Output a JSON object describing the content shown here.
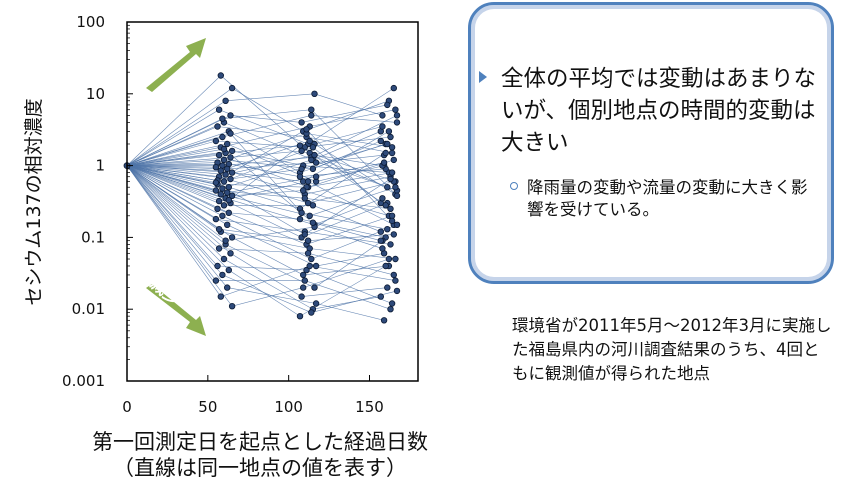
{
  "chart_data": {
    "type": "scatter",
    "x_ticks": [
      0,
      50,
      100,
      150
    ],
    "y_scale": "log",
    "y_ticks": [
      "100",
      "10",
      "1",
      "0.1",
      "0.01",
      "0.001"
    ],
    "ylim": [
      0.001,
      100
    ],
    "xlim": [
      0,
      180
    ],
    "ylabel": "セシウム137の相対濃度",
    "xlabel": "第一回測定日を起点とした経過日数",
    "xlabel_note": "（直線は同一地点の値を表す）",
    "annotations": [
      {
        "text": "増加",
        "direction": "up"
      },
      {
        "text": "減少",
        "direction": "down"
      }
    ],
    "series": [
      {
        "x": [
          0,
          58,
          108,
          160
        ],
        "y": [
          1,
          5,
          3,
          4
        ],
        "x2": [
          0,
          60,
          112,
          163
        ],
        "y2": [
          1,
          0.3,
          1.5,
          0.6
        ]
      }
    ],
    "sites": [
      [
        1,
        18,
        1.5,
        0.6
      ],
      [
        1,
        12,
        3,
        8
      ],
      [
        1,
        8,
        10,
        5
      ],
      [
        1,
        6,
        2,
        12
      ],
      [
        1,
        5,
        4,
        7
      ],
      [
        1,
        4,
        1.2,
        3
      ],
      [
        1,
        3.5,
        2.5,
        1.5
      ],
      [
        1,
        3,
        0.8,
        2
      ],
      [
        1,
        2.5,
        5,
        4
      ],
      [
        1,
        2.2,
        1.8,
        2.5
      ],
      [
        1,
        2,
        0.6,
        1
      ],
      [
        1,
        1.8,
        3.5,
        6
      ],
      [
        1,
        1.6,
        1,
        0.8
      ],
      [
        1,
        1.5,
        2,
        3.5
      ],
      [
        1,
        1.4,
        0.5,
        1.2
      ],
      [
        1,
        1.3,
        1.6,
        0.5
      ],
      [
        1,
        1.2,
        0.9,
        2.2
      ],
      [
        1,
        1.1,
        2.8,
        1.8
      ],
      [
        1,
        1.05,
        0.7,
        0.9
      ],
      [
        1,
        1,
        1.3,
        5
      ],
      [
        1,
        0.95,
        0.4,
        0.7
      ],
      [
        1,
        0.9,
        1.1,
        1.4
      ],
      [
        1,
        0.85,
        2.2,
        0.4
      ],
      [
        1,
        0.8,
        0.6,
        3
      ],
      [
        1,
        0.75,
        1.4,
        1
      ],
      [
        1,
        0.7,
        0.3,
        0.6
      ],
      [
        1,
        0.65,
        0.9,
        2
      ],
      [
        1,
        0.6,
        1.8,
        0.3
      ],
      [
        1,
        0.55,
        0.5,
        0.8
      ],
      [
        1,
        0.5,
        0.25,
        1.5
      ],
      [
        1,
        0.48,
        1.2,
        0.45
      ],
      [
        1,
        0.45,
        0.35,
        0.25
      ],
      [
        1,
        0.42,
        0.7,
        1.1
      ],
      [
        1,
        0.4,
        0.2,
        0.5
      ],
      [
        1,
        0.38,
        0.45,
        0.2
      ],
      [
        1,
        0.35,
        0.15,
        0.35
      ],
      [
        1,
        0.32,
        0.6,
        0.15
      ],
      [
        1,
        0.3,
        0.1,
        0.3
      ],
      [
        1,
        0.28,
        0.28,
        0.12
      ],
      [
        1,
        0.25,
        0.08,
        0.2
      ],
      [
        1,
        0.22,
        0.18,
        0.1
      ],
      [
        1,
        0.2,
        0.05,
        0.15
      ],
      [
        1,
        0.18,
        0.12,
        0.08
      ],
      [
        1,
        0.15,
        0.04,
        0.06
      ],
      [
        1,
        0.12,
        0.07,
        0.05
      ],
      [
        1,
        0.1,
        0.03,
        0.04
      ],
      [
        1,
        0.08,
        0.02,
        0.09
      ],
      [
        1,
        0.07,
        0.06,
        0.03
      ],
      [
        1,
        0.06,
        0.015,
        0.02
      ],
      [
        1,
        0.05,
        0.01,
        0.015
      ],
      [
        1,
        0.04,
        0.035,
        0.012
      ],
      [
        1,
        0.035,
        0.008,
        0.04
      ],
      [
        1,
        0.03,
        0.009,
        0.018
      ],
      [
        1,
        0.025,
        0.025,
        0.01
      ],
      [
        1,
        0.02,
        0.012,
        0.007
      ],
      [
        1,
        0.015,
        0.04,
        0.025
      ],
      [
        1,
        0.011,
        0.02,
        0.05
      ],
      [
        1,
        0.09,
        0.14,
        0.07
      ],
      [
        1,
        0.13,
        0.09,
        0.11
      ],
      [
        1,
        2.8,
        0.22,
        0.13
      ],
      [
        1,
        1.7,
        0.16,
        0.09
      ],
      [
        1,
        0.62,
        3.2,
        0.17
      ],
      [
        1,
        0.33,
        1.9,
        0.28
      ],
      [
        1,
        4.5,
        6,
        0.38
      ],
      [
        1,
        0.58,
        0.11,
        0.65
      ]
    ],
    "site_x": [
      0,
      60,
      112,
      162
    ]
  },
  "callout": {
    "main": "全体の平均では変動はあまりないが、個別地点の時間的変動は大きい",
    "sub": "降雨量の変動や流量の変動に大きく影響を受けている。"
  },
  "source_note": "環境省が2011年5月～2012年3月に実施した福島県内の河川調査結果のうち、4回ともに観測値が得られた地点",
  "colors": {
    "line": "#4f74a8",
    "marker": "#1f3864",
    "arrow": "#8db050",
    "frame": "#4f81bd"
  }
}
